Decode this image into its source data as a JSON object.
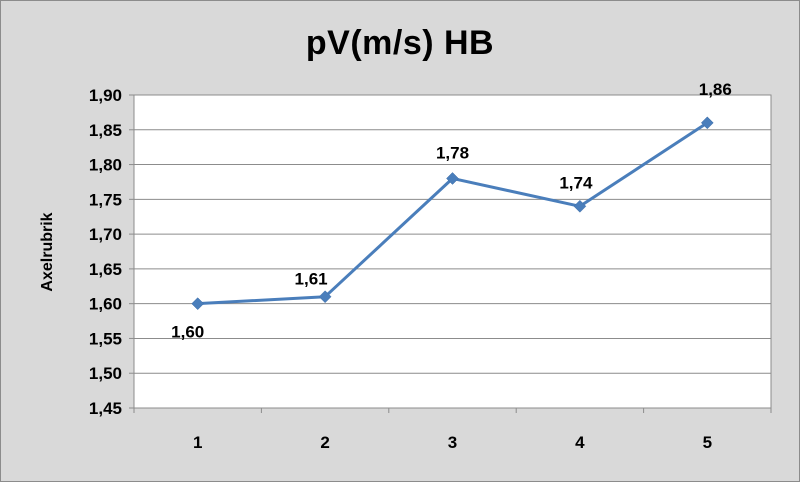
{
  "chart_data": {
    "type": "line",
    "title": "pV(m/s) HB",
    "xlabel": "",
    "ylabel": "Axelrubrik",
    "categories": [
      "1",
      "2",
      "3",
      "4",
      "5"
    ],
    "series": [
      {
        "values": [
          1.6,
          1.61,
          1.78,
          1.74,
          1.86
        ],
        "data_labels": [
          "1,60",
          "1,61",
          "1,78",
          "1,74",
          "1,86"
        ],
        "color": "#4a7ebb",
        "marker": "diamond"
      }
    ],
    "ylim": [
      1.45,
      1.9
    ],
    "yticks": [
      1.9,
      1.85,
      1.8,
      1.75,
      1.7,
      1.65,
      1.6,
      1.55,
      1.5,
      1.45
    ],
    "ytick_labels": [
      "1,90",
      "1,85",
      "1,80",
      "1,75",
      "1,70",
      "1,65",
      "1,60",
      "1,55",
      "1,50",
      "1,45"
    ],
    "grid": true,
    "legend": "none"
  }
}
